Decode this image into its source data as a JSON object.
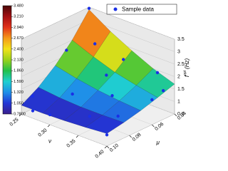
{
  "chart_data": {
    "type": "surface3d",
    "x_label": "ν",
    "y_label": "μ",
    "z_label": "f",
    "z_label_sup": "opt",
    "z_label_unit": "(Hz)",
    "xlim": [
      0.25,
      0.4
    ],
    "xticks": [
      0.25,
      {
        "value": 0.3,
        "label": "0.30"
      },
      0.35,
      {
        "value": 0.4,
        "label": "0.40"
      }
    ],
    "ylim": [
      0.04,
      0.1
    ],
    "yticks": [
      0.04,
      0.06,
      0.08,
      {
        "value": 0.1,
        "label": "0.10"
      }
    ],
    "zlim": [
      0.5,
      3.5
    ],
    "zticks": [
      0.5,
      1,
      1.5,
      2,
      2.5,
      3,
      3.5
    ],
    "clim": [
      0.78,
      3.48
    ],
    "cticks": [
      {
        "value": 0.78,
        "label": "0.7800"
      },
      {
        "value": 1.05,
        "label": "1.050"
      },
      {
        "value": 1.32,
        "label": "1.320"
      },
      {
        "value": 1.59,
        "label": "1.590"
      },
      {
        "value": 1.86,
        "label": "1.860"
      },
      {
        "value": 2.13,
        "label": "2.130"
      },
      {
        "value": 2.4,
        "label": "2.400"
      },
      {
        "value": 2.67,
        "label": "2.670"
      },
      {
        "value": 2.94,
        "label": "2.940"
      },
      {
        "value": 3.21,
        "label": "3.210"
      },
      {
        "value": 3.48,
        "label": "3.480"
      }
    ],
    "colormap": [
      "#3a1f8c",
      "#2336d6",
      "#1f8fe8",
      "#1fd0d0",
      "#22c04a",
      "#9ad21c",
      "#f2e21a",
      "#f59a1a",
      "#e2321a",
      "#a40f12",
      "#4a0808"
    ],
    "legend": "top-right",
    "surface": {
      "x": [
        0.25,
        0.2875,
        0.325,
        0.3625,
        0.4
      ],
      "y": [
        0.04,
        0.055,
        0.07,
        0.085,
        0.1
      ],
      "z": [
        [
          3.4,
          2.5,
          1.8,
          1.25,
          0.85
        ],
        [
          2.85,
          2.15,
          1.6,
          1.15,
          0.85
        ],
        [
          2.4,
          1.85,
          1.45,
          1.1,
          0.88
        ],
        [
          2.0,
          1.65,
          1.35,
          1.1,
          0.93
        ],
        [
          1.7,
          1.48,
          1.28,
          1.12,
          1.0
        ]
      ]
    },
    "series": [
      {
        "name": "Sample data",
        "color": "#1a2fe6",
        "x": [
          0.25,
          0.25,
          0.25,
          0.28,
          0.3,
          0.3,
          0.32,
          0.33,
          0.35,
          0.35,
          0.37,
          0.38,
          0.4,
          0.4,
          0.4,
          0.27
        ],
        "y": [
          0.04,
          0.06,
          0.09,
          0.05,
          0.08,
          0.1,
          0.06,
          0.05,
          0.09,
          0.07,
          0.04,
          0.08,
          0.06,
          0.1,
          0.05,
          0.1
        ],
        "z": [
          3.45,
          2.2,
          1.0,
          2.5,
          1.3,
          0.9,
          1.8,
          2.3,
          1.05,
          1.45,
          1.9,
          1.1,
          1.5,
          0.95,
          1.65,
          0.8
        ]
      }
    ]
  }
}
